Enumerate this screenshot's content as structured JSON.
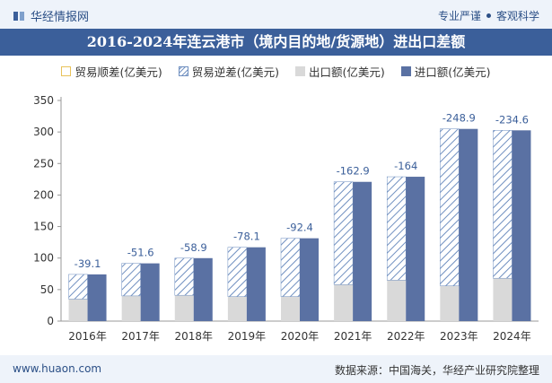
{
  "header": {
    "brand": "华经情报网",
    "tagline_left": "专业严谨",
    "tagline_right": "客观科学"
  },
  "title": "2016-2024年连云港市（境内目的地/货源地）进出口差额",
  "legend": {
    "surplus": "贸易顺差(亿美元)",
    "deficit": "贸易逆差(亿美元)",
    "exports": "出口额(亿美元)",
    "imports": "进口额(亿美元)"
  },
  "colors": {
    "surplus": "#e8c25a",
    "deficit_stripe": "#6f8fc0",
    "exports": "#d9d9d9",
    "imports": "#5a71a3",
    "label": "#3b5f9a",
    "title_bg": "#3b5f9a"
  },
  "chart_data": {
    "type": "bar",
    "categories": [
      "2016年",
      "2017年",
      "2018年",
      "2019年",
      "2020年",
      "2021年",
      "2022年",
      "2023年",
      "2024年"
    ],
    "series": [
      {
        "name": "出口额(亿美元)",
        "values": [
          35,
          40,
          41,
          39,
          39,
          58,
          65,
          56,
          68
        ]
      },
      {
        "name": "进口额(亿美元)",
        "values": [
          74.1,
          91.6,
          99.9,
          117.1,
          131.4,
          220.9,
          229,
          304.9,
          302.6
        ]
      },
      {
        "name": "贸易逆差(亿美元)",
        "values": [
          -39.1,
          -51.6,
          -58.9,
          -78.1,
          -92.4,
          -162.9,
          -164,
          -248.9,
          -234.6
        ]
      }
    ],
    "data_labels": [
      "-39.1",
      "-51.6",
      "-58.9",
      "-78.1",
      "-92.4",
      "-162.9",
      "-164",
      "-248.9",
      "-234.6"
    ],
    "ylim": [
      0,
      350
    ],
    "yticks": [
      0,
      50,
      100,
      150,
      200,
      250,
      300,
      350
    ],
    "grid": false,
    "legend_position": "top"
  },
  "footer": {
    "url": "www.huaon.com",
    "source": "数据来源：中国海关，华经产业研究院整理"
  }
}
